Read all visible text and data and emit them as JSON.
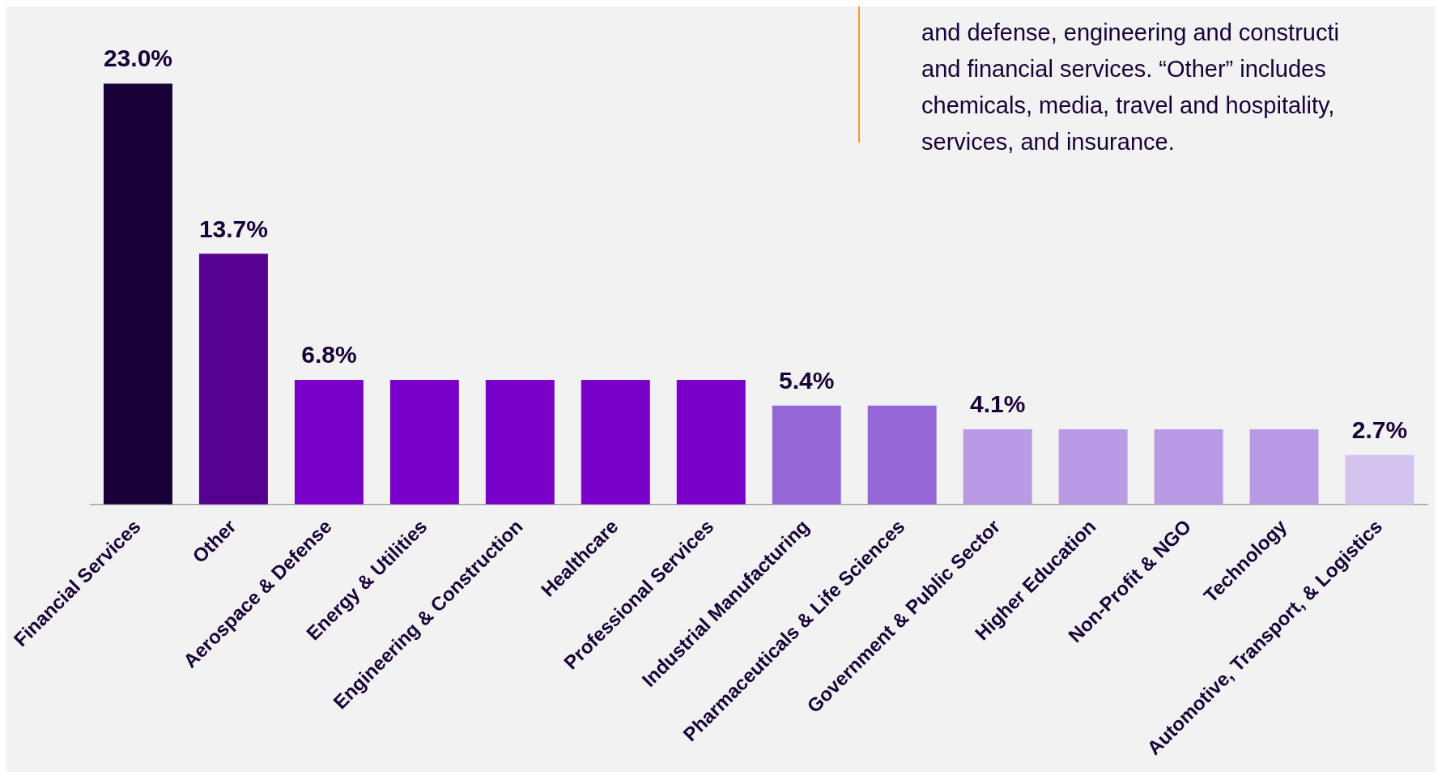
{
  "chart_data": {
    "type": "bar",
    "categories": [
      "Financial Services",
      "Other",
      "Aerospace & Defense",
      "Energy & Utilities",
      "Engineering & Construction",
      "Healthcare",
      "Professional Services",
      "Industrial Manufacturing",
      "Pharmaceuticals & Life Sciences",
      "Government & Public Sector",
      "Higher Education",
      "Non-Profit & NGO",
      "Technology",
      "Automotive, Transport, & Logistics"
    ],
    "values": [
      23.0,
      13.7,
      6.8,
      6.8,
      6.8,
      6.8,
      6.8,
      5.4,
      5.4,
      4.1,
      4.1,
      4.1,
      4.1,
      2.7
    ],
    "colors": [
      "#170035",
      "#55008f",
      "#7800c8",
      "#7800c8",
      "#7800c8",
      "#7800c8",
      "#7800c8",
      "#9566d6",
      "#9566d6",
      "#b99ae4",
      "#b99ae4",
      "#b99ae4",
      "#b99ae4",
      "#d5c3ef"
    ],
    "value_labels": [
      "23.0%",
      "13.7%",
      "6.8%",
      null,
      null,
      null,
      null,
      "5.4%",
      null,
      "4.1%",
      null,
      null,
      null,
      "2.7%"
    ],
    "annotations": [
      "and defense, engineering and constructi",
      "and financial services. “Other” includes",
      "chemicals, media, travel and hospitality,",
      "services, and insurance."
    ],
    "grid": false,
    "legend": false
  }
}
